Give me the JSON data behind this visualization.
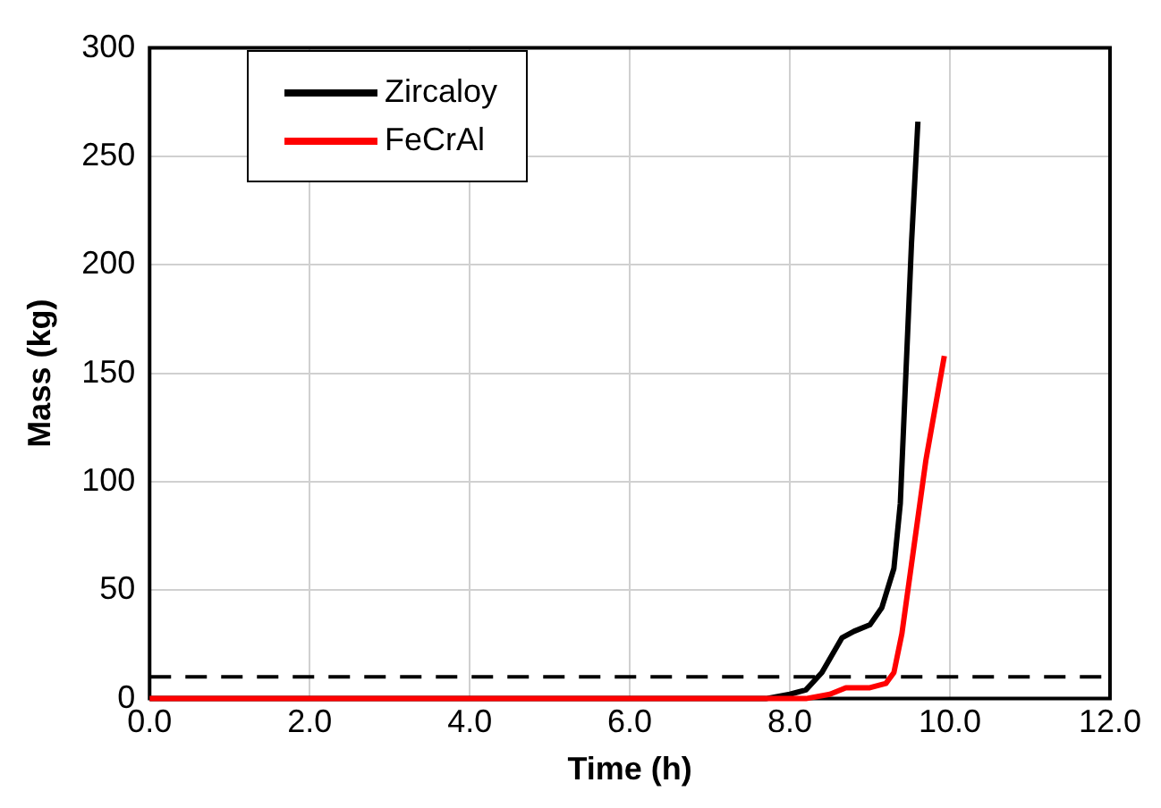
{
  "chart_data": {
    "type": "line",
    "xlabel": "Time (h)",
    "ylabel": "Mass (kg)",
    "xlim": [
      0,
      12
    ],
    "xticks": [
      {
        "value": 0,
        "label": "0.0"
      },
      {
        "value": 2,
        "label": "2.0"
      },
      {
        "value": 4,
        "label": "4.0"
      },
      {
        "value": 6,
        "label": "6.0"
      },
      {
        "value": 8,
        "label": "8.0"
      },
      {
        "value": 10,
        "label": "10.0"
      },
      {
        "value": 12,
        "label": "12.0"
      }
    ],
    "ylim": [
      0,
      300
    ],
    "yticks": [
      0,
      50,
      100,
      150,
      200,
      250,
      300
    ],
    "grid": true,
    "legend": "top left",
    "marker": "none",
    "line_style": "solid",
    "ref_lines": [
      {
        "axis": "y",
        "value": 10,
        "color": "#000000",
        "line_style": "dashed"
      }
    ],
    "series": [
      {
        "name": "Zircaloy",
        "color": "#000000",
        "x": [
          0,
          7.7,
          8.0,
          8.2,
          8.4,
          8.65,
          8.8,
          9.0,
          9.15,
          9.3,
          9.38,
          9.45,
          9.52,
          9.6
        ],
        "values": [
          0,
          0,
          2,
          4,
          12,
          28,
          31,
          34,
          42,
          60,
          90,
          150,
          210,
          266
        ]
      },
      {
        "name": "FeCrAl",
        "color": "#ff0000",
        "x": [
          0,
          8.2,
          8.5,
          8.7,
          9.0,
          9.2,
          9.3,
          9.4,
          9.55,
          9.7,
          9.93
        ],
        "values": [
          0,
          0,
          2,
          5,
          5,
          7,
          12,
          30,
          70,
          110,
          158
        ]
      }
    ]
  }
}
